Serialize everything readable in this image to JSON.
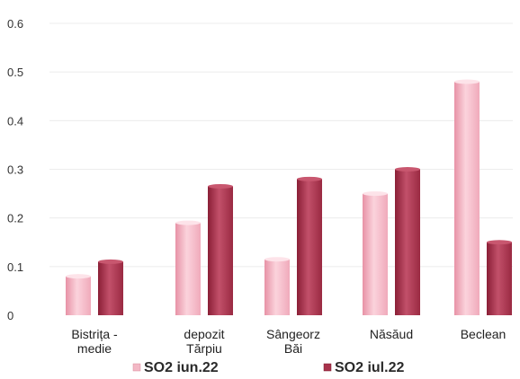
{
  "chart_data": {
    "type": "bar",
    "categories": [
      [
        "Bistrița -",
        "medie"
      ],
      [
        "depozit",
        "Tărpiu"
      ],
      [
        "Sângeorz",
        "Băi"
      ],
      [
        "Năsăud"
      ],
      [
        "Beclean"
      ]
    ],
    "series": [
      {
        "name": "SO2 iun.22",
        "values": [
          0.08,
          0.19,
          0.115,
          0.25,
          0.48
        ],
        "color": "#f3b8c5"
      },
      {
        "name": "SO2 iul.22",
        "values": [
          0.11,
          0.265,
          0.28,
          0.3,
          0.15
        ],
        "color": "#a8324b"
      }
    ],
    "yticks": [
      "0",
      "0.1",
      "0.2",
      "0.3",
      "0.4",
      "0.5",
      "0.6"
    ],
    "ylim": [
      0,
      0.6
    ],
    "grid": true,
    "legend_position": "bottom"
  }
}
